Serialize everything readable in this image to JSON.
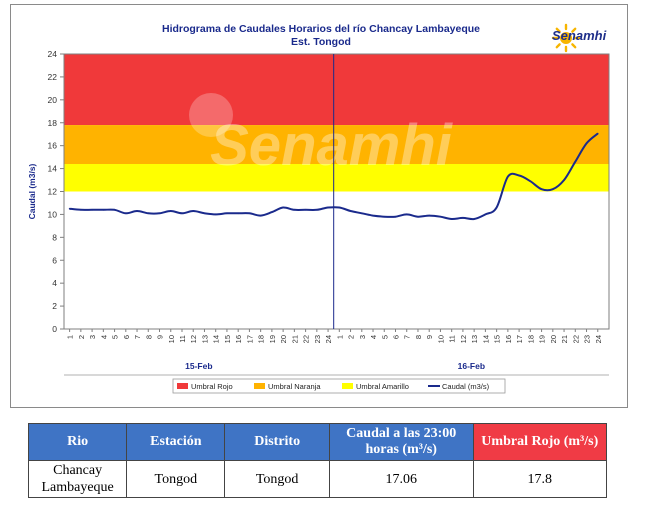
{
  "chart_data": {
    "type": "line",
    "title": "Hidrograma de Caudales Horarios del río Chancay Lambayeque",
    "subtitle": "Est. Tongod",
    "ylabel": "Caudal  (m3/s)",
    "ylim": [
      0,
      24
    ],
    "yticks": [
      0,
      2,
      4,
      6,
      8,
      10,
      12,
      14,
      16,
      18,
      20,
      22,
      24
    ],
    "x_tick_labels": [
      "1",
      "2",
      "3",
      "4",
      "5",
      "6",
      "7",
      "8",
      "9",
      "10",
      "11",
      "12",
      "13",
      "14",
      "15",
      "16",
      "17",
      "18",
      "19",
      "20",
      "21",
      "22",
      "23",
      "24",
      "1",
      "2",
      "3",
      "4",
      "5",
      "6",
      "7",
      "8",
      "9",
      "10",
      "11",
      "12",
      "13",
      "14",
      "15",
      "16",
      "17",
      "18",
      "19",
      "20",
      "21",
      "22",
      "23",
      "24"
    ],
    "day_labels": [
      "15-Feb",
      "16-Feb"
    ],
    "thresholds": [
      {
        "name": "Umbral Rojo",
        "from": 17.8,
        "to": 24,
        "color": "#f0393a"
      },
      {
        "name": "Umbral Naranja",
        "from": 14.4,
        "to": 17.8,
        "color": "#ffb300"
      },
      {
        "name": "Umbral Amarillo",
        "from": 12.0,
        "to": 14.4,
        "color": "#ffff00"
      }
    ],
    "series": [
      {
        "name": "Caudal (m3/s)",
        "color": "#1a2a8c",
        "x": [
          0,
          1,
          2,
          3,
          4,
          5,
          6,
          7,
          8,
          9,
          10,
          11,
          12,
          13,
          14,
          15,
          16,
          17,
          18,
          19,
          20,
          21,
          22,
          23,
          24,
          25,
          26,
          27,
          28,
          29,
          30,
          31,
          32,
          33,
          34,
          35,
          36,
          37,
          38,
          39,
          40,
          41,
          42,
          43,
          44,
          45,
          46,
          47
        ],
        "values": [
          10.5,
          10.4,
          10.4,
          10.4,
          10.4,
          10.1,
          10.3,
          10.1,
          10.1,
          10.3,
          10.1,
          10.3,
          10.1,
          10.0,
          10.1,
          10.1,
          10.1,
          9.9,
          10.2,
          10.6,
          10.4,
          10.4,
          10.4,
          10.6,
          10.6,
          10.3,
          10.1,
          9.9,
          9.8,
          9.8,
          10.0,
          9.8,
          9.9,
          9.8,
          9.6,
          9.7,
          9.6,
          10.0,
          10.6,
          13.3,
          13.4,
          12.9,
          12.2,
          12.2,
          13.0,
          14.6,
          16.2,
          17.06
        ]
      }
    ],
    "legend": [
      "Umbral Rojo",
      "Umbral Naranja",
      "Umbral Amarillo",
      "Caudal (m3/s)"
    ],
    "legend_placement": "bottom",
    "watermark": "Senamhi"
  },
  "logo": {
    "text": "Senamhi"
  },
  "table": {
    "headers": [
      "Rio",
      "Estación",
      "Distrito",
      "Caudal a las 23:00 horas (m³/s)",
      "Umbral Rojo (m³/s)"
    ],
    "row": [
      "Chancay Lambayeque",
      "Tongod",
      "Tongod",
      "17.06",
      "17.8"
    ],
    "header_colors": {
      "default": "#3f74c5",
      "umbral": "#f03b45"
    }
  }
}
